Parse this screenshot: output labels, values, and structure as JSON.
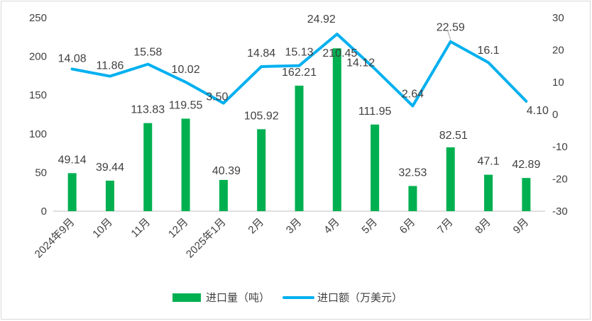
{
  "chart_data": {
    "type": "bar+line",
    "categories": [
      "2024年9月",
      "10月",
      "11月",
      "12月",
      "2025年1月",
      "2月",
      "3月",
      "4月",
      "5月",
      "6月",
      "7月",
      "8月",
      "9月"
    ],
    "series": [
      {
        "name": "进口量（吨）",
        "type": "bar",
        "axis": "left",
        "color": "#00b050",
        "values": [
          49.14,
          39.44,
          113.83,
          119.55,
          40.39,
          105.92,
          162.21,
          210.45,
          111.95,
          32.53,
          82.51,
          47.1,
          42.89
        ],
        "labels": [
          "49.14",
          "39.44",
          "113.83",
          "119.55",
          "40.39",
          "105.92",
          "162.21",
          "210.45",
          "111.95",
          "32.53",
          "82.51",
          "47.1",
          "42.89"
        ]
      },
      {
        "name": "进口额（万美元）",
        "type": "line",
        "axis": "right",
        "color": "#00b0f0",
        "values": [
          14.08,
          11.86,
          15.58,
          10.02,
          3.5,
          14.84,
          15.13,
          24.92,
          14.12,
          2.64,
          22.59,
          16.1,
          4.1
        ],
        "labels": [
          "14.08",
          "11.86",
          "15.58",
          "10.02",
          "3.50",
          "14.84",
          "15.13",
          "24.92",
          "14.12",
          "2.64",
          "22.59",
          "16.1",
          "4.10"
        ]
      }
    ],
    "y_left": {
      "min": 0,
      "max": 250,
      "ticks": [
        "0",
        "50",
        "100",
        "150",
        "200",
        "250"
      ]
    },
    "y_right": {
      "min": -30,
      "max": 30,
      "ticks": [
        "-30",
        "-20",
        "-10",
        "0",
        "10",
        "20",
        "30"
      ]
    },
    "grid": false,
    "legend": "bottom-center"
  }
}
